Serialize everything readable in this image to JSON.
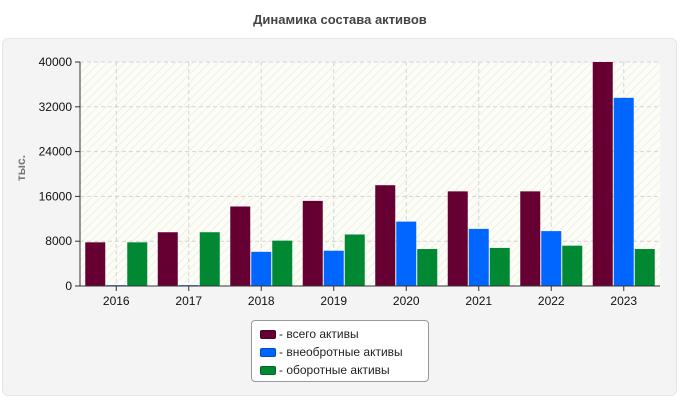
{
  "chart_data": {
    "type": "bar",
    "title": "Динамика состава активов",
    "ylabel": "тыс.",
    "xlabel": "",
    "categories": [
      "2016",
      "2017",
      "2018",
      "2019",
      "2020",
      "2021",
      "2022",
      "2023"
    ],
    "series": [
      {
        "name": "- всего активы",
        "color": "#660033",
        "values": [
          7800,
          9600,
          14200,
          15200,
          18000,
          16900,
          16900,
          40000
        ]
      },
      {
        "name": "- внеобротные активы",
        "color": "#0066ff",
        "values": [
          150,
          150,
          6100,
          6300,
          11500,
          10200,
          9800,
          33600
        ]
      },
      {
        "name": "- оборотные активы",
        "color": "#008833",
        "values": [
          7800,
          9600,
          8100,
          9200,
          6600,
          6800,
          7200,
          6600
        ]
      }
    ],
    "ylim": [
      0,
      40000
    ],
    "yticks": [
      0,
      8000,
      16000,
      24000,
      32000,
      40000
    ],
    "grid": true,
    "legend_position": "bottom-center"
  }
}
